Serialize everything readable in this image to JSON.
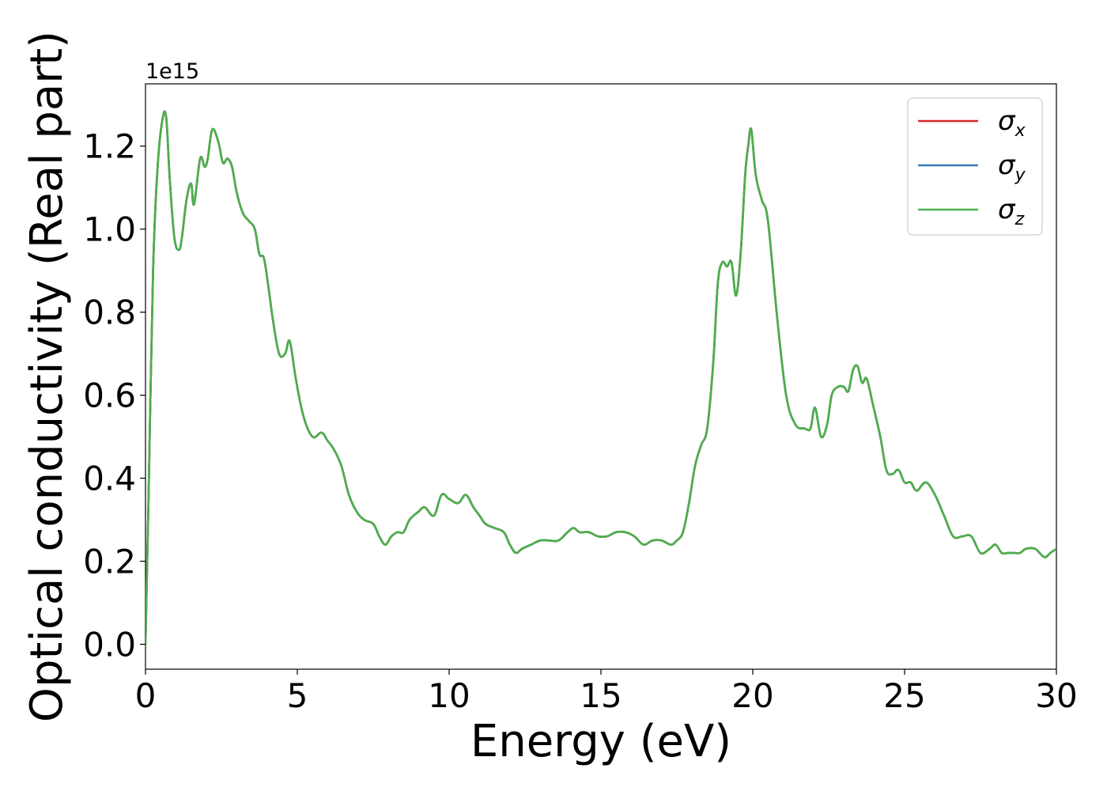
{
  "chart_data": {
    "type": "line",
    "xlabel": "Energy (eV)",
    "ylabel": "Optical conductivity (Real part)",
    "y_offset_text": "1e15",
    "xlim": [
      0,
      30
    ],
    "ylim": [
      -0.06,
      1.35
    ],
    "x_ticks": [
      0,
      5,
      10,
      15,
      20,
      25,
      30
    ],
    "x_tick_labels": [
      "0",
      "5",
      "10",
      "15",
      "20",
      "25",
      "30"
    ],
    "y_ticks": [
      0.0,
      0.2,
      0.4,
      0.6,
      0.8,
      1.0,
      1.2
    ],
    "y_tick_labels": [
      "0.0",
      "0.2",
      "0.4",
      "0.6",
      "0.8",
      "1.0",
      "1.2"
    ],
    "grid": false,
    "legend_position": "top-right",
    "legend": [
      {
        "symbol": "σ",
        "sub": "x",
        "color": "#d62728"
      },
      {
        "symbol": "σ",
        "sub": "y",
        "color": "#3a7bb5"
      },
      {
        "symbol": "σ",
        "sub": "z",
        "color": "#4daf4a"
      }
    ],
    "x": [
      0.0,
      0.1,
      0.25,
      0.4,
      0.55,
      0.68,
      0.8,
      0.95,
      1.1,
      1.2,
      1.35,
      1.5,
      1.6,
      1.8,
      1.95,
      2.05,
      2.2,
      2.4,
      2.55,
      2.7,
      2.85,
      3.0,
      3.2,
      3.4,
      3.6,
      3.75,
      3.9,
      4.05,
      4.2,
      4.4,
      4.6,
      4.75,
      4.95,
      5.2,
      5.5,
      5.8,
      6.0,
      6.2,
      6.45,
      6.7,
      6.95,
      7.2,
      7.5,
      7.7,
      7.9,
      8.1,
      8.3,
      8.5,
      8.7,
      9.0,
      9.2,
      9.5,
      9.75,
      10.0,
      10.3,
      10.55,
      10.8,
      11.0,
      11.2,
      11.5,
      11.8,
      12.0,
      12.2,
      12.4,
      12.7,
      13.0,
      13.3,
      13.6,
      13.9,
      14.1,
      14.3,
      14.6,
      14.9,
      15.2,
      15.5,
      15.8,
      16.1,
      16.4,
      16.7,
      17.0,
      17.3,
      17.5,
      17.7,
      17.9,
      18.1,
      18.3,
      18.5,
      18.7,
      18.85,
      19.0,
      19.15,
      19.3,
      19.45,
      19.6,
      19.75,
      19.85,
      19.95,
      20.1,
      20.3,
      20.5,
      20.8,
      21.1,
      21.4,
      21.7,
      21.9,
      22.05,
      22.25,
      22.45,
      22.6,
      22.8,
      23.0,
      23.15,
      23.3,
      23.45,
      23.6,
      23.75,
      23.95,
      24.2,
      24.4,
      24.6,
      24.8,
      25.0,
      25.2,
      25.4,
      25.7,
      26.0,
      26.3,
      26.6,
      26.9,
      27.2,
      27.5,
      27.8,
      28.0,
      28.2,
      28.4,
      28.6,
      28.8,
      29.0,
      29.3,
      29.6,
      29.8,
      30.0
    ],
    "series": [
      {
        "name": "σx",
        "color": "#d62728",
        "values": [
          0.0,
          0.35,
          0.9,
          1.15,
          1.26,
          1.27,
          1.12,
          0.98,
          0.95,
          0.98,
          1.07,
          1.11,
          1.06,
          1.17,
          1.15,
          1.17,
          1.24,
          1.21,
          1.16,
          1.17,
          1.15,
          1.09,
          1.04,
          1.02,
          1.0,
          0.94,
          0.93,
          0.86,
          0.78,
          0.7,
          0.7,
          0.73,
          0.64,
          0.55,
          0.5,
          0.51,
          0.49,
          0.47,
          0.43,
          0.36,
          0.32,
          0.3,
          0.29,
          0.26,
          0.24,
          0.26,
          0.27,
          0.27,
          0.3,
          0.32,
          0.33,
          0.31,
          0.36,
          0.35,
          0.34,
          0.36,
          0.33,
          0.31,
          0.29,
          0.28,
          0.27,
          0.24,
          0.22,
          0.23,
          0.24,
          0.25,
          0.25,
          0.25,
          0.27,
          0.28,
          0.27,
          0.27,
          0.26,
          0.26,
          0.27,
          0.27,
          0.26,
          0.24,
          0.25,
          0.25,
          0.24,
          0.25,
          0.27,
          0.34,
          0.43,
          0.48,
          0.52,
          0.68,
          0.87,
          0.92,
          0.91,
          0.92,
          0.84,
          0.94,
          1.13,
          1.2,
          1.24,
          1.13,
          1.07,
          1.02,
          0.79,
          0.6,
          0.53,
          0.52,
          0.52,
          0.57,
          0.5,
          0.53,
          0.6,
          0.62,
          0.62,
          0.61,
          0.66,
          0.67,
          0.63,
          0.64,
          0.58,
          0.5,
          0.42,
          0.41,
          0.42,
          0.39,
          0.39,
          0.37,
          0.39,
          0.36,
          0.31,
          0.26,
          0.26,
          0.26,
          0.22,
          0.23,
          0.24,
          0.22,
          0.22,
          0.22,
          0.22,
          0.23,
          0.23,
          0.21,
          0.22,
          0.23
        ]
      },
      {
        "name": "σy",
        "color": "#3a7bb5",
        "values": [
          0.0,
          0.35,
          0.9,
          1.15,
          1.26,
          1.27,
          1.12,
          0.98,
          0.95,
          0.98,
          1.07,
          1.11,
          1.06,
          1.17,
          1.15,
          1.17,
          1.24,
          1.21,
          1.16,
          1.17,
          1.15,
          1.09,
          1.04,
          1.02,
          1.0,
          0.94,
          0.93,
          0.86,
          0.78,
          0.7,
          0.7,
          0.73,
          0.64,
          0.55,
          0.5,
          0.51,
          0.49,
          0.47,
          0.43,
          0.36,
          0.32,
          0.3,
          0.29,
          0.26,
          0.24,
          0.26,
          0.27,
          0.27,
          0.3,
          0.32,
          0.33,
          0.31,
          0.36,
          0.35,
          0.34,
          0.36,
          0.33,
          0.31,
          0.29,
          0.28,
          0.27,
          0.24,
          0.22,
          0.23,
          0.24,
          0.25,
          0.25,
          0.25,
          0.27,
          0.28,
          0.27,
          0.27,
          0.26,
          0.26,
          0.27,
          0.27,
          0.26,
          0.24,
          0.25,
          0.25,
          0.24,
          0.25,
          0.27,
          0.34,
          0.43,
          0.48,
          0.52,
          0.68,
          0.87,
          0.92,
          0.91,
          0.92,
          0.84,
          0.94,
          1.13,
          1.2,
          1.24,
          1.13,
          1.07,
          1.02,
          0.79,
          0.6,
          0.53,
          0.52,
          0.52,
          0.57,
          0.5,
          0.53,
          0.6,
          0.62,
          0.62,
          0.61,
          0.66,
          0.67,
          0.63,
          0.64,
          0.58,
          0.5,
          0.42,
          0.41,
          0.42,
          0.39,
          0.39,
          0.37,
          0.39,
          0.36,
          0.31,
          0.26,
          0.26,
          0.26,
          0.22,
          0.23,
          0.24,
          0.22,
          0.22,
          0.22,
          0.22,
          0.23,
          0.23,
          0.21,
          0.22,
          0.23
        ]
      },
      {
        "name": "σz",
        "color": "#4daf4a",
        "values": [
          0.0,
          0.35,
          0.9,
          1.15,
          1.26,
          1.27,
          1.12,
          0.98,
          0.95,
          0.98,
          1.07,
          1.11,
          1.06,
          1.17,
          1.15,
          1.17,
          1.24,
          1.21,
          1.16,
          1.17,
          1.15,
          1.09,
          1.04,
          1.02,
          1.0,
          0.94,
          0.93,
          0.86,
          0.78,
          0.7,
          0.7,
          0.73,
          0.64,
          0.55,
          0.5,
          0.51,
          0.49,
          0.47,
          0.43,
          0.36,
          0.32,
          0.3,
          0.29,
          0.26,
          0.24,
          0.26,
          0.27,
          0.27,
          0.3,
          0.32,
          0.33,
          0.31,
          0.36,
          0.35,
          0.34,
          0.36,
          0.33,
          0.31,
          0.29,
          0.28,
          0.27,
          0.24,
          0.22,
          0.23,
          0.24,
          0.25,
          0.25,
          0.25,
          0.27,
          0.28,
          0.27,
          0.27,
          0.26,
          0.26,
          0.27,
          0.27,
          0.26,
          0.24,
          0.25,
          0.25,
          0.24,
          0.25,
          0.27,
          0.34,
          0.43,
          0.48,
          0.52,
          0.68,
          0.87,
          0.92,
          0.91,
          0.92,
          0.84,
          0.94,
          1.13,
          1.2,
          1.24,
          1.13,
          1.07,
          1.02,
          0.79,
          0.6,
          0.53,
          0.52,
          0.52,
          0.57,
          0.5,
          0.53,
          0.6,
          0.62,
          0.62,
          0.61,
          0.66,
          0.67,
          0.63,
          0.64,
          0.58,
          0.5,
          0.42,
          0.41,
          0.42,
          0.39,
          0.39,
          0.37,
          0.39,
          0.36,
          0.31,
          0.26,
          0.26,
          0.26,
          0.22,
          0.23,
          0.24,
          0.22,
          0.22,
          0.22,
          0.22,
          0.23,
          0.23,
          0.21,
          0.22,
          0.23
        ]
      }
    ]
  }
}
